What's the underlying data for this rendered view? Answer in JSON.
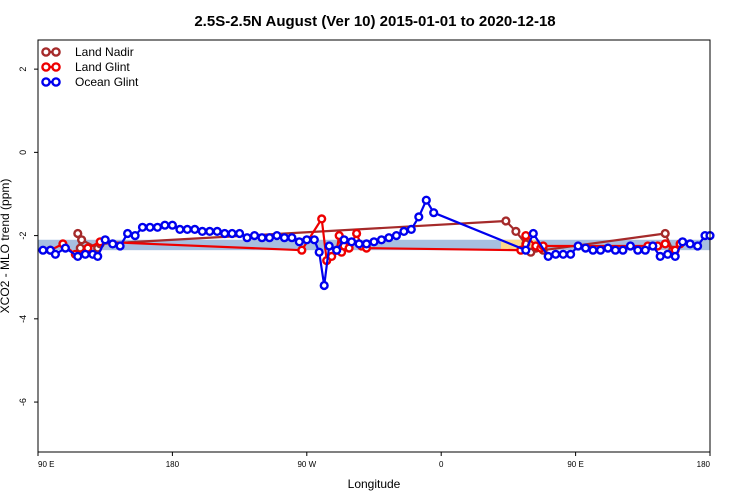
{
  "chart_data": {
    "type": "line",
    "title": "2.5S-2.5N August (Ver 10)   2015-01-01 to 2020-12-18",
    "xlabel": "Longitude",
    "ylabel": "XCO2 - MLO trend (ppm)",
    "xlim": [
      -90,
      180
    ],
    "ylim": [
      -7.2,
      2.7
    ],
    "x_ticks": [
      {
        "value": -90,
        "label": "90 E"
      },
      {
        "value": -36,
        "label": "180"
      },
      {
        "value": 18,
        "label": "90 W"
      },
      {
        "value": 72,
        "label": "0"
      },
      {
        "value": 126,
        "label": "90 E"
      },
      {
        "value": 180,
        "label": "180"
      }
    ],
    "y_ticks": [
      {
        "value": 2,
        "label": "2"
      },
      {
        "value": 0,
        "label": "0"
      },
      {
        "value": -2,
        "label": "-2"
      },
      {
        "value": -4,
        "label": "-4"
      },
      {
        "value": -6,
        "label": "-6"
      }
    ],
    "legend_position": "top-left",
    "bands": [
      {
        "name": "ocean-band",
        "x0": -90,
        "x1": 180,
        "y0": -2.35,
        "y1": -2.1,
        "color": "#a7bfe0"
      },
      {
        "name": "land-band",
        "x0": 96,
        "x1": 110,
        "y0": -2.35,
        "y1": -2.1,
        "color": "#fcd98a"
      }
    ],
    "series": [
      {
        "name": "Land Nadir",
        "color": "#a52a2a",
        "points": [
          [
            -74,
            -1.95
          ],
          [
            -73,
            -2.3
          ],
          [
            -72.5,
            -2.1
          ],
          [
            -66,
            -2.3
          ],
          [
            -65,
            -2.2
          ],
          [
            98,
            -1.65
          ],
          [
            102,
            -1.9
          ],
          [
            106,
            -2.2
          ],
          [
            108,
            -2.4
          ],
          [
            110,
            -2.3
          ],
          [
            113,
            -2.35
          ],
          [
            162,
            -1.95
          ],
          [
            165,
            -2.35
          ]
        ]
      },
      {
        "name": "Land Glint",
        "color": "#ee0000",
        "points": [
          [
            -85,
            -2.35
          ],
          [
            -80,
            -2.2
          ],
          [
            -75,
            -2.45
          ],
          [
            -70,
            -2.3
          ],
          [
            -65,
            -2.15
          ],
          [
            16,
            -2.35
          ],
          [
            24,
            -1.6
          ],
          [
            26,
            -2.6
          ],
          [
            28,
            -2.5
          ],
          [
            30,
            -2.35
          ],
          [
            31,
            -2.0
          ],
          [
            32,
            -2.4
          ],
          [
            33,
            -2.25
          ],
          [
            35,
            -2.3
          ],
          [
            38,
            -1.95
          ],
          [
            40,
            -2.25
          ],
          [
            42,
            -2.3
          ],
          [
            104,
            -2.35
          ],
          [
            106,
            -2.0
          ],
          [
            110,
            -2.25
          ],
          [
            112,
            -2.3
          ],
          [
            113,
            -2.25
          ],
          [
            155,
            -2.25
          ],
          [
            159,
            -2.25
          ],
          [
            162,
            -2.2
          ],
          [
            166,
            -2.35
          ],
          [
            168,
            -2.2
          ]
        ]
      },
      {
        "name": "Ocean Glint",
        "color": "#0000ee",
        "points": [
          [
            -88,
            -2.35
          ],
          [
            -85,
            -2.35
          ],
          [
            -83,
            -2.45
          ],
          [
            -79,
            -2.3
          ],
          [
            -74,
            -2.5
          ],
          [
            -71,
            -2.45
          ],
          [
            -68,
            -2.45
          ],
          [
            -66,
            -2.5
          ],
          [
            -63,
            -2.1
          ],
          [
            -60,
            -2.2
          ],
          [
            -57,
            -2.25
          ],
          [
            -54,
            -1.95
          ],
          [
            -51,
            -2.0
          ],
          [
            -48,
            -1.8
          ],
          [
            -45,
            -1.8
          ],
          [
            -42,
            -1.8
          ],
          [
            -39,
            -1.75
          ],
          [
            -36,
            -1.75
          ],
          [
            -33,
            -1.85
          ],
          [
            -30,
            -1.85
          ],
          [
            -27,
            -1.85
          ],
          [
            -24,
            -1.9
          ],
          [
            -21,
            -1.9
          ],
          [
            -18,
            -1.9
          ],
          [
            -15,
            -1.95
          ],
          [
            -12,
            -1.95
          ],
          [
            -9,
            -1.95
          ],
          [
            -6,
            -2.05
          ],
          [
            -3,
            -2.0
          ],
          [
            0,
            -2.05
          ],
          [
            3,
            -2.05
          ],
          [
            6,
            -2.0
          ],
          [
            9,
            -2.05
          ],
          [
            12,
            -2.05
          ],
          [
            15,
            -2.15
          ],
          [
            18,
            -2.1
          ],
          [
            21,
            -2.1
          ],
          [
            23,
            -2.4
          ],
          [
            25,
            -3.2
          ],
          [
            27,
            -2.25
          ],
          [
            30,
            -2.35
          ],
          [
            33,
            -2.1
          ],
          [
            36,
            -2.15
          ],
          [
            39,
            -2.2
          ],
          [
            42,
            -2.2
          ],
          [
            45,
            -2.15
          ],
          [
            48,
            -2.1
          ],
          [
            51,
            -2.05
          ],
          [
            54,
            -2.0
          ],
          [
            57,
            -1.9
          ],
          [
            60,
            -1.85
          ],
          [
            63,
            -1.55
          ],
          [
            66,
            -1.15
          ],
          [
            69,
            -1.45
          ],
          [
            106,
            -2.35
          ],
          [
            109,
            -1.95
          ],
          [
            115,
            -2.5
          ],
          [
            118,
            -2.45
          ],
          [
            121,
            -2.45
          ],
          [
            124,
            -2.45
          ],
          [
            127,
            -2.25
          ],
          [
            130,
            -2.3
          ],
          [
            133,
            -2.35
          ],
          [
            136,
            -2.35
          ],
          [
            139,
            -2.3
          ],
          [
            142,
            -2.35
          ],
          [
            145,
            -2.35
          ],
          [
            148,
            -2.25
          ],
          [
            151,
            -2.35
          ],
          [
            154,
            -2.35
          ],
          [
            157,
            -2.25
          ],
          [
            160,
            -2.5
          ],
          [
            163,
            -2.45
          ],
          [
            166,
            -2.5
          ],
          [
            169,
            -2.15
          ],
          [
            172,
            -2.2
          ],
          [
            175,
            -2.25
          ],
          [
            178,
            -2.0
          ],
          [
            180,
            -2.0
          ]
        ]
      }
    ]
  }
}
